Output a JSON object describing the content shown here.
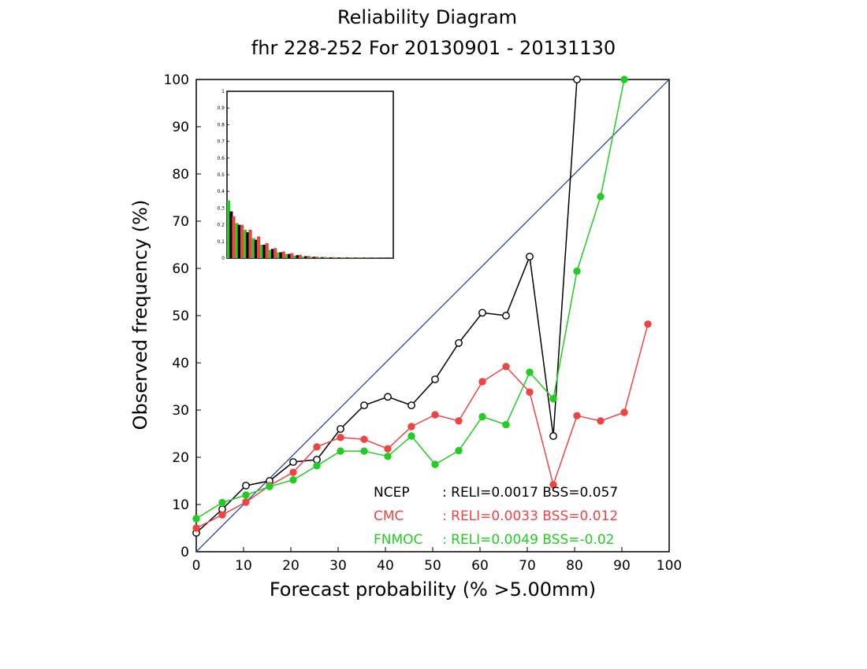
{
  "chart_data": {
    "type": "line",
    "title": "Reliability Diagram",
    "subtitle": "fhr 228-252 For 20130901 - 20131130",
    "xlabel": "Forecast probability (% >5.00mm)",
    "ylabel": "Observed frequency (%)",
    "xlim": [
      0,
      100
    ],
    "ylim": [
      0,
      100
    ],
    "x_ticks": [
      "0",
      "10",
      "20",
      "30",
      "40",
      "50",
      "60",
      "70",
      "80",
      "90",
      "100"
    ],
    "y_ticks": [
      "0",
      "10",
      "20",
      "30",
      "40",
      "50",
      "60",
      "70",
      "80",
      "90",
      "100"
    ],
    "grid": false,
    "diagonal_color": "#2233aa",
    "series": [
      {
        "name": "NCEP",
        "color": "#000000",
        "marker": "open-circle",
        "x": [
          0,
          5.5,
          10.5,
          15.5,
          20.5,
          25.5,
          30.5,
          35.5,
          40.5,
          45.5,
          50.5,
          55.5,
          60.5,
          65.5,
          70.5,
          75.5,
          80.5
        ],
        "y": [
          4,
          9,
          14,
          15,
          19,
          19.5,
          26,
          31,
          32.8,
          31,
          36.5,
          44.2,
          50.6,
          50,
          62.5,
          24.5,
          100
        ],
        "stats": ": RELI=0.0017  BSS=0.057"
      },
      {
        "name": "CMC",
        "color": "#ee4444",
        "marker": "filled-circle",
        "x": [
          0,
          5.5,
          10.5,
          15.5,
          20.5,
          25.5,
          30.5,
          35.5,
          40.5,
          45.5,
          50.5,
          55.5,
          60.5,
          65.5,
          70.5,
          75.5,
          80.5,
          85.5,
          90.5,
          95.5
        ],
        "y": [
          5,
          7.8,
          10.5,
          14,
          16.8,
          22.2,
          24.2,
          23.8,
          21.8,
          26.5,
          29,
          27.7,
          36,
          39.2,
          33.8,
          14.2,
          28.8,
          27.7,
          29.5,
          48.2
        ],
        "stats": ": RELI=0.0033  BSS=0.012"
      },
      {
        "name": "FNMOC",
        "color": "#22cc22",
        "marker": "filled-circle",
        "x": [
          0,
          5.5,
          10.5,
          15.5,
          20.5,
          25.5,
          30.5,
          35.5,
          40.5,
          45.5,
          50.5,
          55.5,
          60.5,
          65.5,
          70.5,
          75.5,
          80.5,
          85.5,
          90.5
        ],
        "y": [
          7,
          10.4,
          12,
          13.8,
          15.2,
          18.2,
          21.3,
          21.3,
          20.2,
          24.5,
          18.5,
          21.4,
          28.6,
          26.9,
          38,
          32.4,
          59.4,
          75.2,
          100
        ],
        "stats": ": RELI=0.0049  BSS=-0.02"
      }
    ],
    "inset": {
      "type": "bar",
      "ylim": [
        0,
        1
      ],
      "y_ticks": [
        "0",
        "0.1",
        "0.2",
        "0.3",
        "0.4",
        "0.5",
        "0.6",
        "0.7",
        "0.8",
        "0.9",
        "1"
      ],
      "bins": 20,
      "series": [
        {
          "name": "FNMOC",
          "color": "#22cc22",
          "values": [
            0.345,
            0.21,
            0.17,
            0.12,
            0.08,
            0.05,
            0.035,
            0.025,
            0.015,
            0.01,
            0.008,
            0.006,
            0.005,
            0.004,
            0.003,
            0.002,
            0.002,
            0.001,
            0.001,
            0.0
          ]
        },
        {
          "name": "NCEP",
          "color": "#000000",
          "values": [
            0.28,
            0.2,
            0.155,
            0.11,
            0.08,
            0.055,
            0.035,
            0.025,
            0.018,
            0.012,
            0.008,
            0.006,
            0.005,
            0.004,
            0.003,
            0.002,
            0.002,
            0.001,
            0.001,
            0.0
          ]
        },
        {
          "name": "CMC",
          "color": "#ee4444",
          "values": [
            0.25,
            0.2,
            0.17,
            0.13,
            0.09,
            0.06,
            0.04,
            0.03,
            0.02,
            0.013,
            0.009,
            0.007,
            0.006,
            0.005,
            0.004,
            0.003,
            0.002,
            0.002,
            0.001,
            0.001
          ]
        }
      ]
    }
  }
}
